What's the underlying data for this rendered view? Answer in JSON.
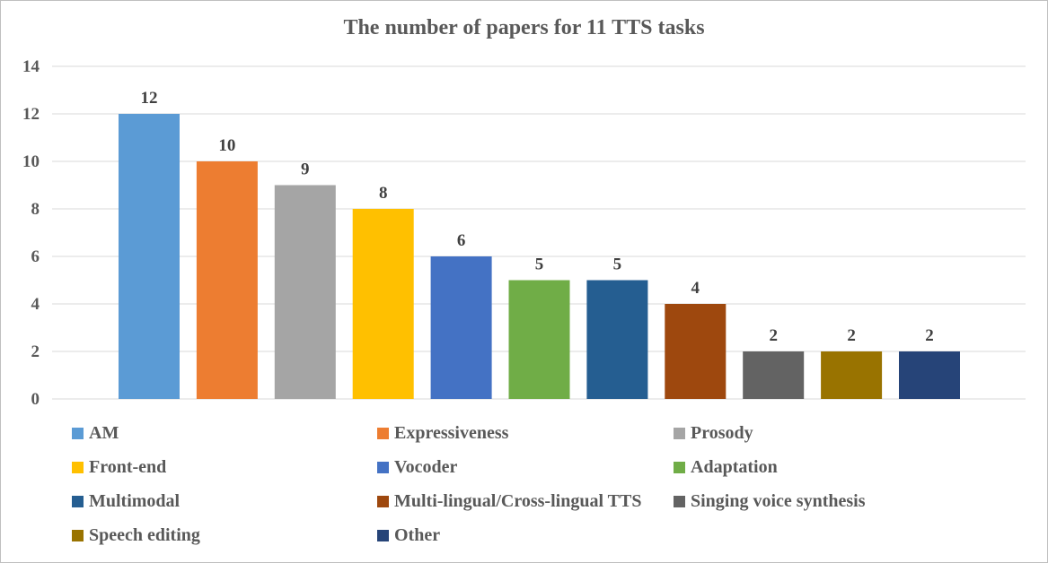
{
  "chart_data": {
    "type": "bar",
    "title": "The number of papers for 11 TTS tasks",
    "xlabel": "",
    "ylabel": "",
    "ylim": [
      0,
      14
    ],
    "yticks": [
      0,
      2,
      4,
      6,
      8,
      10,
      12,
      14
    ],
    "grid": true,
    "legend_position": "bottom",
    "categories": [
      "AM",
      "Expressiveness",
      "Prosody",
      "Front-end",
      "Vocoder",
      "Adaptation",
      "Multimodal",
      "Multi-lingual/Cross-lingual TTS",
      "Singing voice synthesis",
      "Speech editing",
      "Other"
    ],
    "values": [
      12,
      10,
      9,
      8,
      6,
      5,
      5,
      4,
      2,
      2,
      2
    ],
    "colors": [
      "#5b9bd5",
      "#ed7d31",
      "#a5a5a5",
      "#ffc000",
      "#4472c4",
      "#70ad47",
      "#255e91",
      "#9e480e",
      "#636363",
      "#997300",
      "#264478"
    ]
  }
}
